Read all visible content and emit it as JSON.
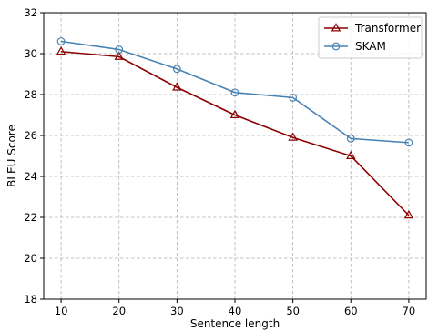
{
  "chart_data": {
    "type": "line",
    "xlabel": "Sentence length",
    "ylabel": "BLEU Score",
    "x": [
      10,
      20,
      30,
      40,
      50,
      60,
      70
    ],
    "xticks": [
      10,
      20,
      30,
      40,
      50,
      60,
      70
    ],
    "yticks": [
      18,
      20,
      22,
      24,
      26,
      28,
      30,
      32
    ],
    "xlim": [
      7,
      73
    ],
    "ylim": [
      18,
      32
    ],
    "grid": true,
    "legend_position": "top-right",
    "series": [
      {
        "name": "Transformer",
        "color": "#8b0000",
        "marker": "triangle",
        "values": [
          30.1,
          29.85,
          28.35,
          27.0,
          25.9,
          25.0,
          22.1
        ]
      },
      {
        "name": "SKAM",
        "color": "#4682b4",
        "marker": "circle",
        "values": [
          30.6,
          30.2,
          29.25,
          28.1,
          27.85,
          25.85,
          25.65
        ]
      }
    ]
  }
}
